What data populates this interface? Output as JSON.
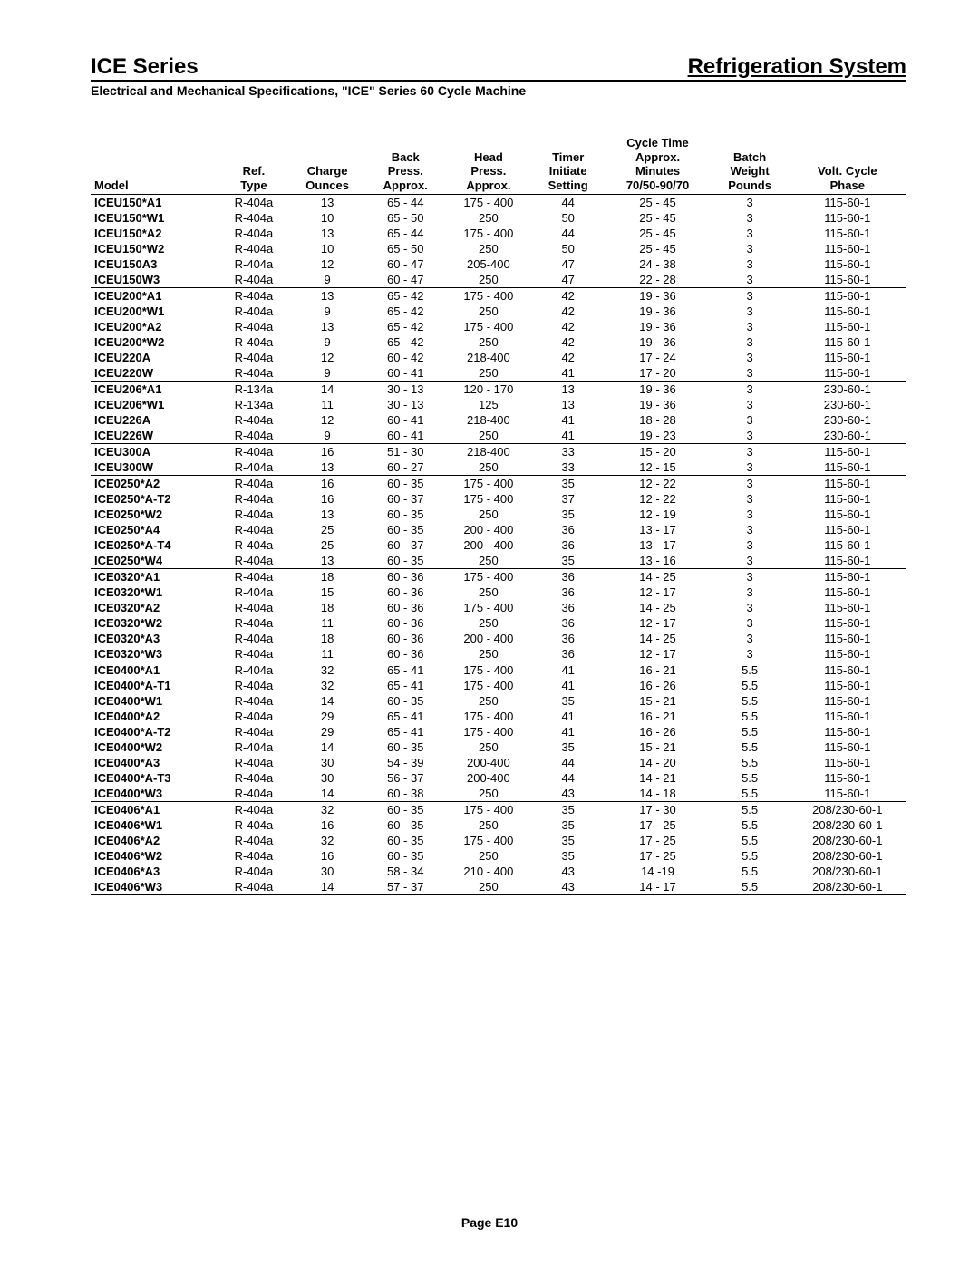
{
  "header": {
    "left": "ICE Series",
    "right": "Refrigeration System",
    "subtitle": "Electrical and Mechanical Specifications, \"ICE\" Series 60 Cycle Machine"
  },
  "footer": "Page E10",
  "table": {
    "columns": [
      {
        "l1": "",
        "l2": "",
        "l3": "Model",
        "align": "left"
      },
      {
        "l1": "",
        "l2": "Ref.",
        "l3": "Type"
      },
      {
        "l1": "",
        "l2": "Charge",
        "l3": "Ounces"
      },
      {
        "l1": "Back",
        "l2": "Press.",
        "l3": "Approx."
      },
      {
        "l1": "Head",
        "l2": "Press.",
        "l3": "Approx."
      },
      {
        "l1": "Timer",
        "l2": "Initiate",
        "l3": "Setting"
      },
      {
        "l1": "Cycle Time",
        "l2": "Approx.",
        "l3": "Minutes",
        "l4": "70/50-90/70"
      },
      {
        "l1": "Batch",
        "l2": "Weight",
        "l3": "Pounds"
      },
      {
        "l1": "",
        "l2": "Volt.  Cycle",
        "l3": "Phase"
      }
    ],
    "groups": [
      [
        [
          "ICEU150*A1",
          "R-404a",
          "13",
          "65 - 44",
          "175 - 400",
          "44",
          "25 - 45",
          "3",
          "115-60-1"
        ],
        [
          "ICEU150*W1",
          "R-404a",
          "10",
          "65 - 50",
          "250",
          "50",
          "25 - 45",
          "3",
          "115-60-1"
        ],
        [
          "ICEU150*A2",
          "R-404a",
          "13",
          "65 - 44",
          "175 - 400",
          "44",
          "25 - 45",
          "3",
          "115-60-1"
        ],
        [
          "ICEU150*W2",
          "R-404a",
          "10",
          "65 - 50",
          "250",
          "50",
          "25 - 45",
          "3",
          "115-60-1"
        ],
        [
          "ICEU150A3",
          "R-404a",
          "12",
          "60 - 47",
          "205-400",
          "47",
          "24 - 38",
          "3",
          "115-60-1"
        ],
        [
          "ICEU150W3",
          "R-404a",
          "9",
          "60 - 47",
          "250",
          "47",
          "22 - 28",
          "3",
          "115-60-1"
        ]
      ],
      [
        [
          "ICEU200*A1",
          "R-404a",
          "13",
          "65 - 42",
          "175 - 400",
          "42",
          "19 - 36",
          "3",
          "115-60-1"
        ],
        [
          "ICEU200*W1",
          "R-404a",
          "9",
          "65 - 42",
          "250",
          "42",
          "19 - 36",
          "3",
          "115-60-1"
        ],
        [
          "ICEU200*A2",
          "R-404a",
          "13",
          "65 - 42",
          "175 - 400",
          "42",
          "19 - 36",
          "3",
          "115-60-1"
        ],
        [
          "ICEU200*W2",
          "R-404a",
          "9",
          "65 - 42",
          "250",
          "42",
          "19 - 36",
          "3",
          "115-60-1"
        ],
        [
          "ICEU220A",
          "R-404a",
          "12",
          "60 - 42",
          "218-400",
          "42",
          "17 - 24",
          "3",
          "115-60-1"
        ],
        [
          "ICEU220W",
          "R-404a",
          "9",
          "60 - 41",
          "250",
          "41",
          "17 - 20",
          "3",
          "115-60-1"
        ]
      ],
      [
        [
          "ICEU206*A1",
          "R-134a",
          "14",
          "30 - 13",
          "120 - 170",
          "13",
          "19 - 36",
          "3",
          "230-60-1"
        ],
        [
          "ICEU206*W1",
          "R-134a",
          "11",
          "30 - 13",
          "125",
          "13",
          "19 - 36",
          "3",
          "230-60-1"
        ],
        [
          "ICEU226A",
          "R-404a",
          "12",
          "60 - 41",
          "218-400",
          "41",
          "18 - 28",
          "3",
          "230-60-1"
        ],
        [
          "ICEU226W",
          "R-404a",
          "9",
          "60 - 41",
          "250",
          "41",
          "19 - 23",
          "3",
          "230-60-1"
        ]
      ],
      [
        [
          "ICEU300A",
          "R-404a",
          "16",
          "51 - 30",
          "218-400",
          "33",
          "15 - 20",
          "3",
          "115-60-1"
        ],
        [
          "ICEU300W",
          "R-404a",
          "13",
          "60 - 27",
          "250",
          "33",
          "12 - 15",
          "3",
          "115-60-1"
        ]
      ],
      [
        [
          "ICE0250*A2",
          "R-404a",
          "16",
          "60 - 35",
          "175 - 400",
          "35",
          "12 - 22",
          "3",
          "115-60-1"
        ],
        [
          "ICE0250*A-T2",
          "R-404a",
          "16",
          "60 - 37",
          "175 - 400",
          "37",
          "12 - 22",
          "3",
          "115-60-1"
        ],
        [
          "ICE0250*W2",
          "R-404a",
          "13",
          "60 - 35",
          "250",
          "35",
          "12 - 19",
          "3",
          "115-60-1"
        ],
        [
          "ICE0250*A4",
          "R-404a",
          "25",
          "60 - 35",
          "200 - 400",
          "36",
          "13 - 17",
          "3",
          "115-60-1"
        ],
        [
          "ICE0250*A-T4",
          "R-404a",
          "25",
          "60 - 37",
          "200 - 400",
          "36",
          "13 - 17",
          "3",
          "115-60-1"
        ],
        [
          "ICE0250*W4",
          "R-404a",
          "13",
          "60 - 35",
          "250",
          "35",
          "13 - 16",
          "3",
          "115-60-1"
        ]
      ],
      [
        [
          "ICE0320*A1",
          "R-404a",
          "18",
          "60 - 36",
          "175 - 400",
          "36",
          "14 - 25",
          "3",
          "115-60-1"
        ],
        [
          "ICE0320*W1",
          "R-404a",
          "15",
          "60 - 36",
          "250",
          "36",
          "12 - 17",
          "3",
          "115-60-1"
        ],
        [
          "ICE0320*A2",
          "R-404a",
          "18",
          "60 - 36",
          "175 - 400",
          "36",
          "14 - 25",
          "3",
          "115-60-1"
        ],
        [
          "ICE0320*W2",
          "R-404a",
          "11",
          "60 - 36",
          "250",
          "36",
          "12 - 17",
          "3",
          "115-60-1"
        ],
        [
          "ICE0320*A3",
          "R-404a",
          "18",
          "60 - 36",
          "200 - 400",
          "36",
          "14 - 25",
          "3",
          "115-60-1"
        ],
        [
          "ICE0320*W3",
          "R-404a",
          "11",
          "60 - 36",
          "250",
          "36",
          "12 - 17",
          "3",
          "115-60-1"
        ]
      ],
      [
        [
          "ICE0400*A1",
          "R-404a",
          "32",
          "65 - 41",
          "175 - 400",
          "41",
          "16 - 21",
          "5.5",
          "115-60-1"
        ],
        [
          "ICE0400*A-T1",
          "R-404a",
          "32",
          "65 - 41",
          "175 - 400",
          "41",
          "16 - 26",
          "5.5",
          "115-60-1"
        ],
        [
          "ICE0400*W1",
          "R-404a",
          "14",
          "60 - 35",
          "250",
          "35",
          "15 - 21",
          "5.5",
          "115-60-1"
        ],
        [
          "ICE0400*A2",
          "R-404a",
          "29",
          "65 - 41",
          "175 - 400",
          "41",
          "16 - 21",
          "5.5",
          "115-60-1"
        ],
        [
          "ICE0400*A-T2",
          "R-404a",
          "29",
          "65 - 41",
          "175 - 400",
          "41",
          "16 - 26",
          "5.5",
          "115-60-1"
        ],
        [
          "ICE0400*W2",
          "R-404a",
          "14",
          "60 - 35",
          "250",
          "35",
          "15 - 21",
          "5.5",
          "115-60-1"
        ],
        [
          "ICE0400*A3",
          "R-404a",
          "30",
          "54 - 39",
          "200-400",
          "44",
          "14 - 20",
          "5.5",
          "115-60-1"
        ],
        [
          "ICE0400*A-T3",
          "R-404a",
          "30",
          "56 - 37",
          "200-400",
          "44",
          "14 - 21",
          "5.5",
          "115-60-1"
        ],
        [
          "ICE0400*W3",
          "R-404a",
          "14",
          "60 - 38",
          "250",
          "43",
          "14 - 18",
          "5.5",
          "115-60-1"
        ]
      ],
      [
        [
          "ICE0406*A1",
          "R-404a",
          "32",
          "60 - 35",
          "175 - 400",
          "35",
          "17 - 30",
          "5.5",
          "208/230-60-1"
        ],
        [
          "ICE0406*W1",
          "R-404a",
          "16",
          "60 - 35",
          "250",
          "35",
          "17 - 25",
          "5.5",
          "208/230-60-1"
        ],
        [
          "ICE0406*A2",
          "R-404a",
          "32",
          "60 - 35",
          "175 - 400",
          "35",
          "17 - 25",
          "5.5",
          "208/230-60-1"
        ],
        [
          "ICE0406*W2",
          "R-404a",
          "16",
          "60 - 35",
          "250",
          "35",
          "17 - 25",
          "5.5",
          "208/230-60-1"
        ],
        [
          "ICE0406*A3",
          "R-404a",
          "30",
          "58 - 34",
          "210 - 400",
          "43",
          "14 -19",
          "5.5",
          "208/230-60-1"
        ],
        [
          "ICE0406*W3",
          "R-404a",
          "14",
          "57 - 37",
          "250",
          "43",
          "14 - 17",
          "5.5",
          "208/230-60-1"
        ]
      ]
    ]
  }
}
